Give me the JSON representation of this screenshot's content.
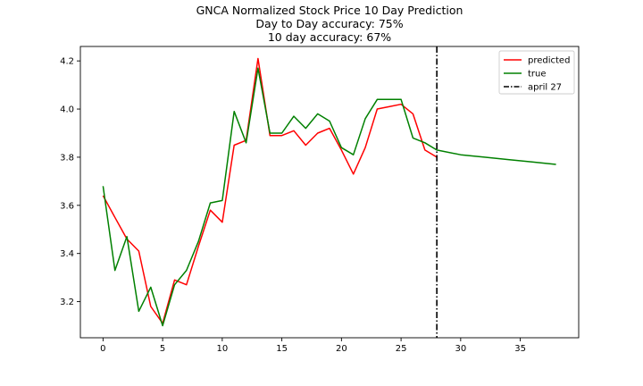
{
  "chart_data": {
    "type": "line",
    "title": "GNCA Normalized Stock Price 10 Day Prediction",
    "subtitle_lines": [
      "Day to Day accuracy: 75%",
      "10 day accuracy: 67%"
    ],
    "xlabel": "",
    "ylabel": "",
    "xlim": [
      -1.9,
      39.9
    ],
    "ylim": [
      3.05,
      4.26
    ],
    "xticks": [
      0,
      5,
      10,
      15,
      20,
      25,
      30,
      35
    ],
    "yticks": [
      3.2,
      3.4,
      3.6,
      3.8,
      4.0,
      4.2
    ],
    "ytick_labels": [
      "3.2",
      "3.4",
      "3.6",
      "3.8",
      "4.0",
      "4.2"
    ],
    "grid": false,
    "legend_position": "top-right",
    "series": [
      {
        "name": "predicted",
        "color": "#ff0000",
        "style": "solid",
        "x": [
          0,
          1,
          2,
          3,
          4,
          5,
          6,
          7,
          8,
          9,
          10,
          11,
          12,
          13,
          14,
          15,
          16,
          17,
          18,
          19,
          20,
          21,
          22,
          23,
          24,
          25,
          26,
          27,
          28
        ],
        "y": [
          3.64,
          3.55,
          3.46,
          3.41,
          3.18,
          3.11,
          3.29,
          3.27,
          3.43,
          3.58,
          3.53,
          3.85,
          3.87,
          4.21,
          3.89,
          3.89,
          3.91,
          3.85,
          3.9,
          3.92,
          3.83,
          3.73,
          3.84,
          4.0,
          4.01,
          4.02,
          3.98,
          3.83,
          3.8
        ]
      },
      {
        "name": "true",
        "color": "#008000",
        "style": "solid",
        "x": [
          0,
          1,
          2,
          3,
          4,
          5,
          6,
          7,
          8,
          9,
          10,
          11,
          12,
          13,
          14,
          15,
          16,
          17,
          18,
          19,
          20,
          21,
          22,
          23,
          24,
          25,
          26,
          27,
          28,
          30,
          32,
          34,
          36,
          38
        ],
        "y": [
          3.68,
          3.33,
          3.47,
          3.16,
          3.26,
          3.1,
          3.27,
          3.33,
          3.45,
          3.61,
          3.62,
          3.99,
          3.86,
          4.17,
          3.9,
          3.9,
          3.97,
          3.92,
          3.98,
          3.95,
          3.84,
          3.81,
          3.96,
          4.04,
          4.04,
          4.04,
          3.88,
          3.86,
          3.83,
          3.81,
          3.8,
          3.79,
          3.78,
          3.77
        ]
      },
      {
        "name": "april 27",
        "color": "#000000",
        "style": "dashdot",
        "vline_x": 28
      }
    ]
  }
}
